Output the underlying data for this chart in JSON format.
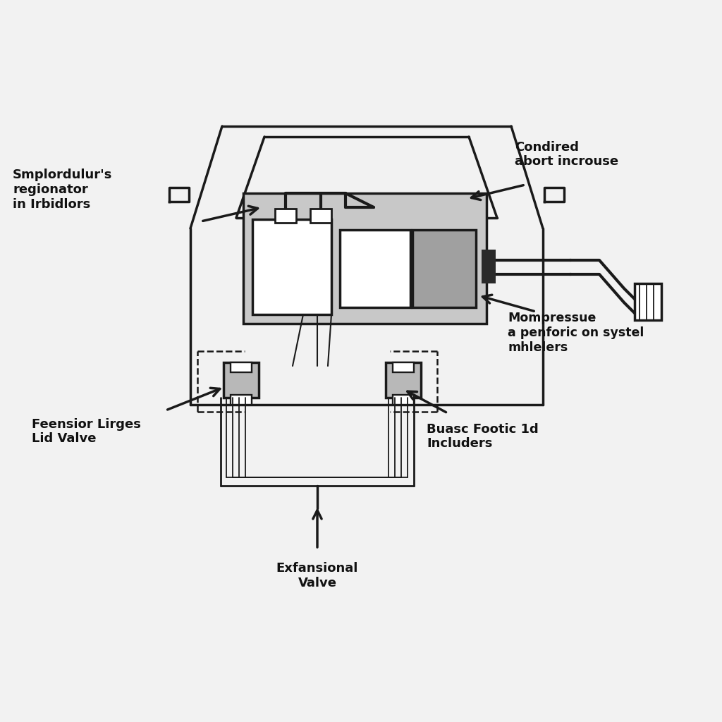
{
  "bg_color": "#f2f2f2",
  "line_color": "#1a1a1a",
  "lw": 2.5,
  "labels": {
    "top_left": "Smplordulur's\nregionator\nin Irbidlors",
    "top_right": "Condired\nabort incrouse",
    "mid_right": "Mompressue\na penforic on systel\nmhlelers",
    "bot_left": "Feensior Lirges\nLid Valve",
    "bot_right": "Buasc Footic 1d\nIncluders",
    "bot_center": "Exfansional\nValve"
  },
  "label_fontsize": 13,
  "label_fontweight": "bold"
}
